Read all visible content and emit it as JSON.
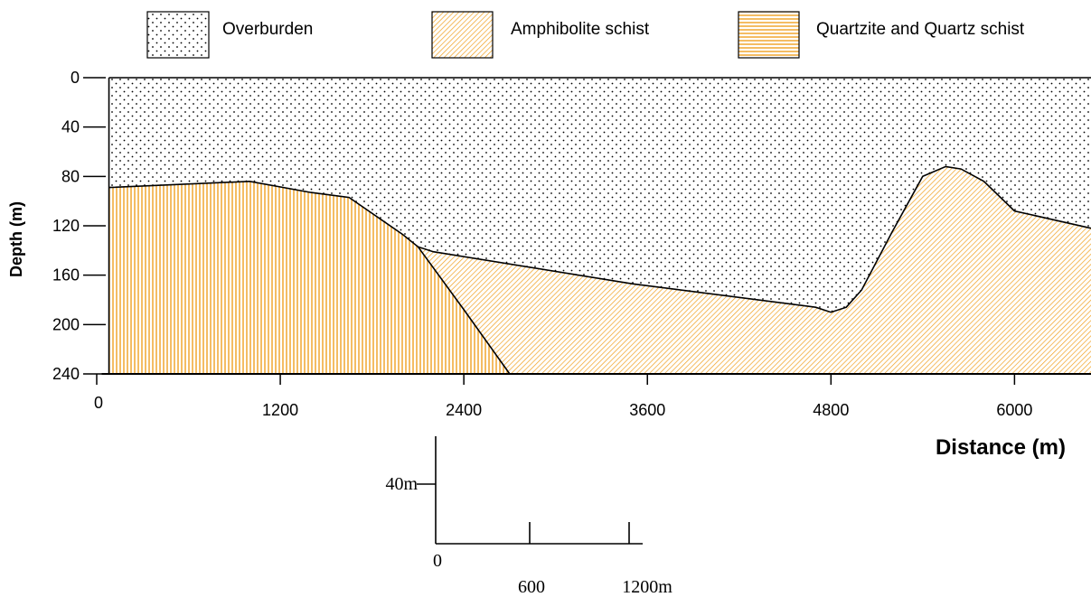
{
  "legend": [
    {
      "key": "overburden",
      "label": "Overburden"
    },
    {
      "key": "amphibolite",
      "label": "Amphibolite schist"
    },
    {
      "key": "quartzite",
      "label": "Quartzite and Quartz schist"
    }
  ],
  "axes": {
    "y_label": "Depth (m)",
    "x_label": "Distance (m)",
    "y_ticks": [
      0,
      40,
      80,
      120,
      160,
      200,
      240
    ],
    "x_ticks": [
      0,
      1200,
      2400,
      3600,
      4800,
      6000
    ]
  },
  "scale_bar": {
    "vertical_label": "40m",
    "horizontal_labels": [
      "0",
      "600",
      "1200m"
    ]
  },
  "colors": {
    "hatch": "#f0a020",
    "outline": "#000000"
  },
  "chart_data": {
    "type": "geologic-cross-section",
    "xlabel": "Distance (m)",
    "ylabel": "Depth (m)",
    "xlim": [
      0,
      6500
    ],
    "ylim": [
      0,
      240
    ],
    "y_inverted": true,
    "units": {
      "x": "m",
      "y": "m"
    },
    "layers": [
      {
        "name": "Overburden",
        "pattern": "dots"
      },
      {
        "name": "Amphibolite schist",
        "pattern": "diagonal-hatch"
      },
      {
        "name": "Quartzite and Quartz schist",
        "pattern": "vertical-hatch"
      }
    ],
    "overburden_base": {
      "x": [
        80,
        1000,
        1400,
        1650,
        2000,
        2100,
        2200,
        3500,
        4700,
        4800,
        4900,
        5000,
        5200,
        5400,
        5550,
        5650,
        5800,
        6000,
        6500
      ],
      "y": [
        89,
        84,
        93,
        97,
        127,
        137,
        141,
        167,
        186,
        190,
        186,
        172,
        125,
        80,
        72,
        74,
        84,
        108,
        122
      ]
    },
    "quartzite_amphibolite_boundary": {
      "x": [
        2100,
        2400,
        2700
      ],
      "y": [
        137,
        188,
        240
      ]
    }
  }
}
